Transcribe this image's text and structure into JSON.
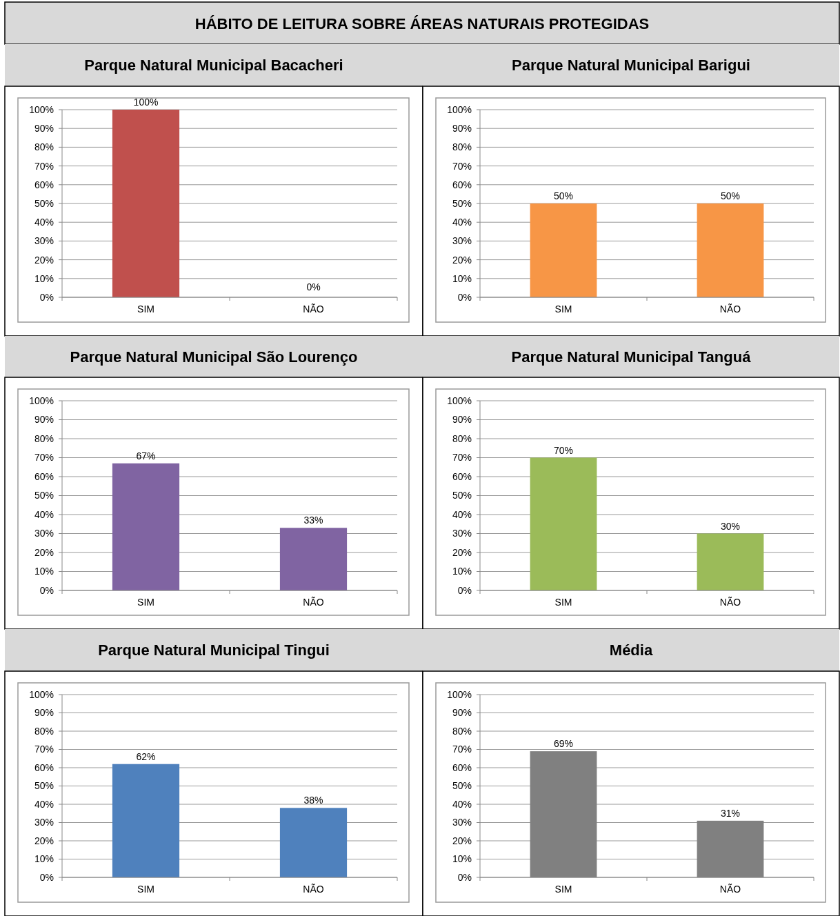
{
  "chart_data": [
    {
      "type": "bar",
      "title": "Parque Natural Municipal Bacacheri",
      "annotations": [
        "HÁBITO DE LEITURA SOBRE ÁREAS NATURAIS PROTEGIDAS"
      ],
      "categories": [
        "SIM",
        "NÃO"
      ],
      "values": [
        100,
        0
      ],
      "value_labels": [
        "100%",
        "0%"
      ],
      "color": "#c0504d",
      "ylim": [
        0,
        100
      ],
      "yticks": [
        {
          "value": 0,
          "label": "0%"
        },
        {
          "value": 10,
          "label": "10%"
        },
        {
          "value": 20,
          "label": "20%"
        },
        {
          "value": 30,
          "label": "30%"
        },
        {
          "value": 40,
          "label": "40%"
        },
        {
          "value": 50,
          "label": "50%"
        },
        {
          "value": 60,
          "label": "60%"
        },
        {
          "value": 70,
          "label": "70%"
        },
        {
          "value": 80,
          "label": "80%"
        },
        {
          "value": 90,
          "label": "90%"
        },
        {
          "value": 100,
          "label": "100%"
        }
      ],
      "grid": "y"
    },
    {
      "type": "bar",
      "title": "Parque Natural Municipal Barigui",
      "categories": [
        "SIM",
        "NÃO"
      ],
      "values": [
        50,
        50
      ],
      "value_labels": [
        "50%",
        "50%"
      ],
      "color": "#f79646",
      "ylim": [
        0,
        100
      ],
      "yticks": [
        {
          "value": 0,
          "label": "0%"
        },
        {
          "value": 10,
          "label": "10%"
        },
        {
          "value": 20,
          "label": "20%"
        },
        {
          "value": 30,
          "label": "30%"
        },
        {
          "value": 40,
          "label": "40%"
        },
        {
          "value": 50,
          "label": "50%"
        },
        {
          "value": 60,
          "label": "60%"
        },
        {
          "value": 70,
          "label": "70%"
        },
        {
          "value": 80,
          "label": "80%"
        },
        {
          "value": 90,
          "label": "90%"
        },
        {
          "value": 100,
          "label": "100%"
        }
      ],
      "grid": "y"
    },
    {
      "type": "bar",
      "title": "Parque Natural Municipal São Lourenço",
      "categories": [
        "SIM",
        "NÃO"
      ],
      "values": [
        67,
        33
      ],
      "value_labels": [
        "67%",
        "33%"
      ],
      "color": "#8064a2",
      "ylim": [
        0,
        100
      ],
      "yticks": [
        {
          "value": 0,
          "label": "0%"
        },
        {
          "value": 10,
          "label": "10%"
        },
        {
          "value": 20,
          "label": "20%"
        },
        {
          "value": 30,
          "label": "30%"
        },
        {
          "value": 40,
          "label": "40%"
        },
        {
          "value": 50,
          "label": "50%"
        },
        {
          "value": 60,
          "label": "60%"
        },
        {
          "value": 70,
          "label": "70%"
        },
        {
          "value": 80,
          "label": "80%"
        },
        {
          "value": 90,
          "label": "90%"
        },
        {
          "value": 100,
          "label": "100%"
        }
      ],
      "grid": "y"
    },
    {
      "type": "bar",
      "title": "Parque Natural Municipal Tanguá",
      "categories": [
        "SIM",
        "NÃO"
      ],
      "values": [
        70,
        30
      ],
      "value_labels": [
        "70%",
        "30%"
      ],
      "color": "#9bbb59",
      "ylim": [
        0,
        100
      ],
      "yticks": [
        {
          "value": 0,
          "label": "0%"
        },
        {
          "value": 10,
          "label": "10%"
        },
        {
          "value": 20,
          "label": "20%"
        },
        {
          "value": 30,
          "label": "30%"
        },
        {
          "value": 40,
          "label": "40%"
        },
        {
          "value": 50,
          "label": "50%"
        },
        {
          "value": 60,
          "label": "60%"
        },
        {
          "value": 70,
          "label": "70%"
        },
        {
          "value": 80,
          "label": "80%"
        },
        {
          "value": 90,
          "label": "90%"
        },
        {
          "value": 100,
          "label": "100%"
        }
      ],
      "grid": "y"
    },
    {
      "type": "bar",
      "title": "Parque Natural Municipal Tingui",
      "categories": [
        "SIM",
        "NÃO"
      ],
      "values": [
        62,
        38
      ],
      "value_labels": [
        "62%",
        "38%"
      ],
      "color": "#4f81bd",
      "ylim": [
        0,
        100
      ],
      "yticks": [
        {
          "value": 0,
          "label": "0%"
        },
        {
          "value": 10,
          "label": "10%"
        },
        {
          "value": 20,
          "label": "20%"
        },
        {
          "value": 30,
          "label": "30%"
        },
        {
          "value": 40,
          "label": "40%"
        },
        {
          "value": 50,
          "label": "50%"
        },
        {
          "value": 60,
          "label": "60%"
        },
        {
          "value": 70,
          "label": "70%"
        },
        {
          "value": 80,
          "label": "80%"
        },
        {
          "value": 90,
          "label": "90%"
        },
        {
          "value": 100,
          "label": "100%"
        }
      ],
      "grid": "y"
    },
    {
      "type": "bar",
      "title": "Média",
      "categories": [
        "SIM",
        "NÃO"
      ],
      "values": [
        69,
        31
      ],
      "value_labels": [
        "69%",
        "31%"
      ],
      "color": "#808080",
      "ylim": [
        0,
        100
      ],
      "yticks": [
        {
          "value": 0,
          "label": "0%"
        },
        {
          "value": 10,
          "label": "10%"
        },
        {
          "value": 20,
          "label": "20%"
        },
        {
          "value": 30,
          "label": "30%"
        },
        {
          "value": 40,
          "label": "40%"
        },
        {
          "value": 50,
          "label": "50%"
        },
        {
          "value": 60,
          "label": "60%"
        },
        {
          "value": 70,
          "label": "70%"
        },
        {
          "value": 80,
          "label": "80%"
        },
        {
          "value": 90,
          "label": "90%"
        },
        {
          "value": 100,
          "label": "100%"
        }
      ],
      "grid": "y"
    }
  ]
}
